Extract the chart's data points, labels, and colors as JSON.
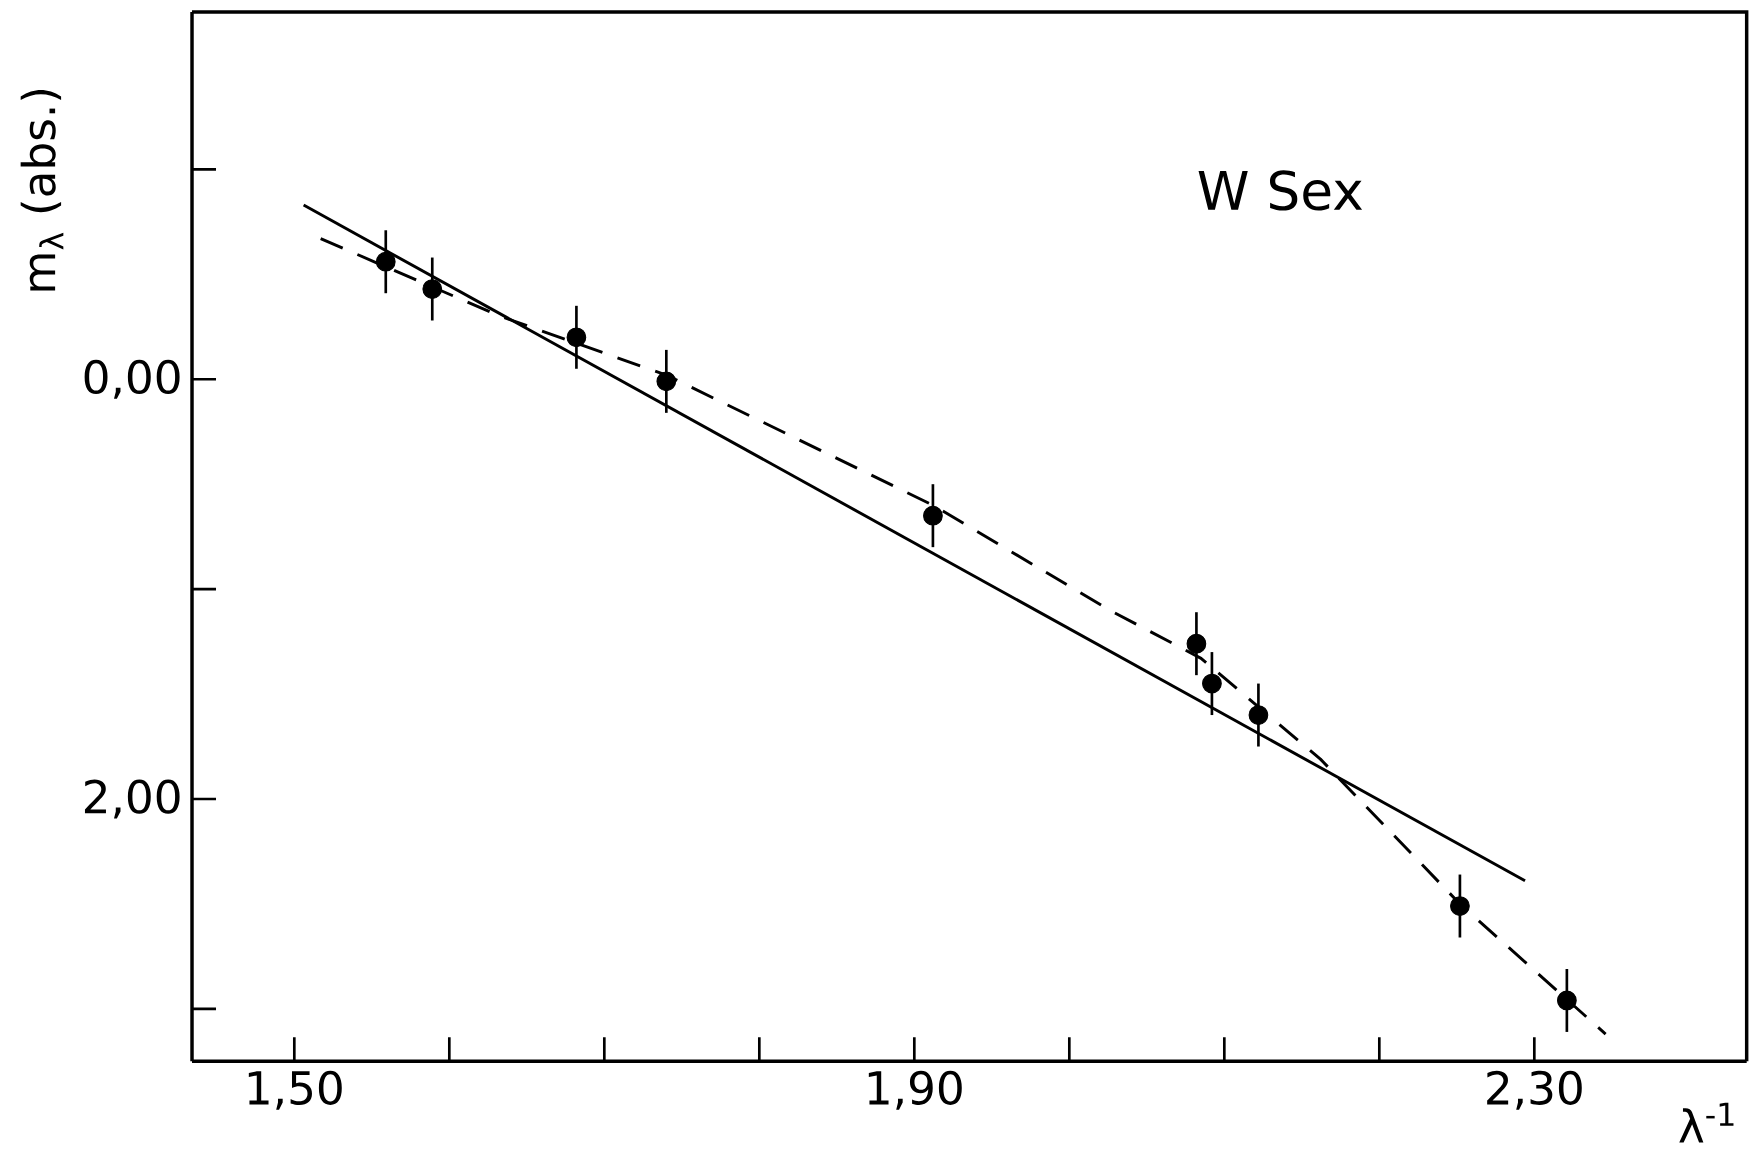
{
  "chart_data": {
    "type": "scatter",
    "xlabel": "λ$^{-1}$",
    "ylabel": "m$_{λ}$ (abs.)",
    "annotations": [
      "W Sex"
    ],
    "xlim": [
      1.434,
      2.437
    ],
    "ylim": [
      3.25,
      -1.75
    ],
    "xticks": [
      {
        "value": 1.5,
        "label": "1,50"
      },
      {
        "value": 1.6,
        "label": null
      },
      {
        "value": 1.7,
        "label": null
      },
      {
        "value": 1.8,
        "label": null
      },
      {
        "value": 1.9,
        "label": "1,90"
      },
      {
        "value": 2.0,
        "label": null
      },
      {
        "value": 2.1,
        "label": null
      },
      {
        "value": 2.2,
        "label": null
      },
      {
        "value": 2.3,
        "label": "2,30"
      }
    ],
    "yticks": [
      {
        "value": -1,
        "label": null
      },
      {
        "value": 0,
        "label": "0,00"
      },
      {
        "value": 1,
        "label": null
      },
      {
        "value": 2,
        "label": "2,00"
      },
      {
        "value": 3,
        "label": null
      }
    ],
    "series": [
      {
        "type": "scatter",
        "color": "#000000",
        "marker": "circle",
        "x": [
          1.559,
          1.589,
          1.682,
          1.74,
          1.912,
          2.082,
          2.092,
          2.122,
          2.252,
          2.321
        ],
        "values": [
          -0.56,
          -0.43,
          -0.2,
          0.01,
          0.65,
          1.26,
          1.45,
          1.6,
          2.51,
          2.96
        ],
        "errors": [
          0.15,
          0.15,
          0.15,
          0.15,
          0.15,
          0.15,
          0.15,
          0.15,
          0.15,
          0.15
        ]
      },
      {
        "type": "line",
        "color": "#000000",
        "marker": "none",
        "line_style": "solid",
        "x": [
          1.506,
          2.294
        ],
        "values": [
          -0.83,
          2.39
        ]
      },
      {
        "type": "line",
        "color": "#000000",
        "marker": "none",
        "line_style": "dashed",
        "x": [
          1.517,
          1.633,
          1.74,
          1.912,
          2.026,
          2.085,
          2.162,
          2.252,
          2.346
        ],
        "values": [
          -0.67,
          -0.3,
          -0.02,
          0.6,
          1.1,
          1.33,
          1.81,
          2.5,
          3.12
        ]
      }
    ]
  }
}
